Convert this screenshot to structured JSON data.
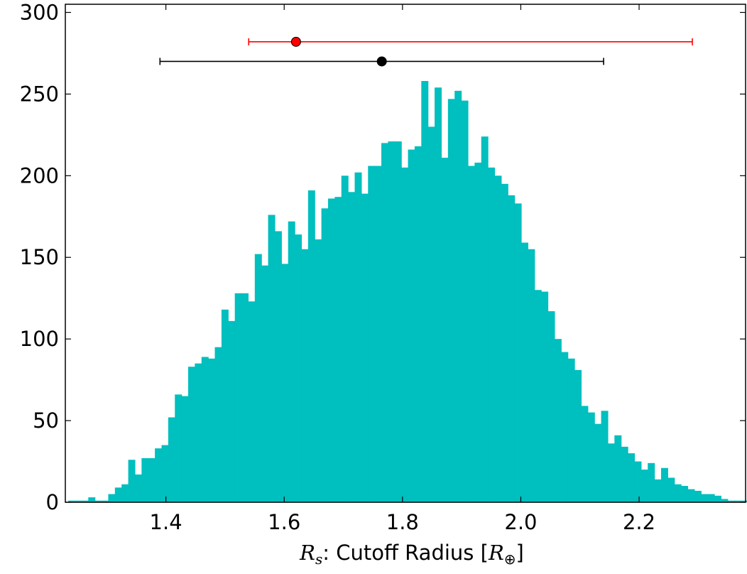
{
  "chart_data": {
    "type": "bar",
    "subtype": "histogram",
    "xlabel": {
      "symbol": "R",
      "symbol_subscript": "s",
      "text": ": Cutoff Radius [",
      "unit_symbol": "R",
      "unit_subscript": "⊕",
      "close": "]"
    },
    "ylabel": "",
    "xlim": [
      1.23,
      2.38
    ],
    "ylim": [
      0,
      305
    ],
    "xticks": [
      1.4,
      1.6,
      1.8,
      2.0,
      2.2
    ],
    "xtick_labels": [
      "1.4",
      "1.6",
      "1.8",
      "2.0",
      "2.2"
    ],
    "yticks": [
      0,
      50,
      100,
      150,
      200,
      250,
      300
    ],
    "ytick_labels": [
      "0",
      "50",
      "100",
      "150",
      "200",
      "250",
      "300"
    ],
    "bar_color": "#00bfbf",
    "bin_start": 1.235,
    "bin_width": 0.01126,
    "counts": [
      1,
      1,
      1,
      3,
      1,
      1,
      5,
      9,
      11,
      26,
      17,
      27,
      27,
      33,
      35,
      52,
      66,
      65,
      83,
      85,
      89,
      88,
      95,
      118,
      111,
      128,
      128,
      123,
      152,
      145,
      176,
      166,
      146,
      172,
      164,
      155,
      191,
      161,
      180,
      186,
      187,
      200,
      190,
      202,
      189,
      206,
      206,
      220,
      221,
      221,
      205,
      216,
      218,
      258,
      230,
      254,
      211,
      247,
      252,
      246,
      206,
      208,
      224,
      205,
      200,
      195,
      188,
      183,
      159,
      155,
      130,
      129,
      117,
      100,
      92,
      88,
      81,
      59,
      55,
      48,
      56,
      36,
      41,
      34,
      30,
      25,
      20,
      24,
      14,
      21,
      15,
      11,
      10,
      8,
      7,
      5,
      5,
      4,
      2,
      1,
      1,
      1,
      2,
      0,
      1
    ],
    "error_points": [
      {
        "series": "red",
        "color": "#ff0000",
        "x": 1.62,
        "y": 282,
        "xerr_low": 1.54,
        "xerr_high": 2.29
      },
      {
        "series": "black",
        "color": "#000000",
        "x": 1.765,
        "y": 270,
        "xerr_low": 1.39,
        "xerr_high": 2.14
      }
    ],
    "grid": false,
    "legend": null
  }
}
